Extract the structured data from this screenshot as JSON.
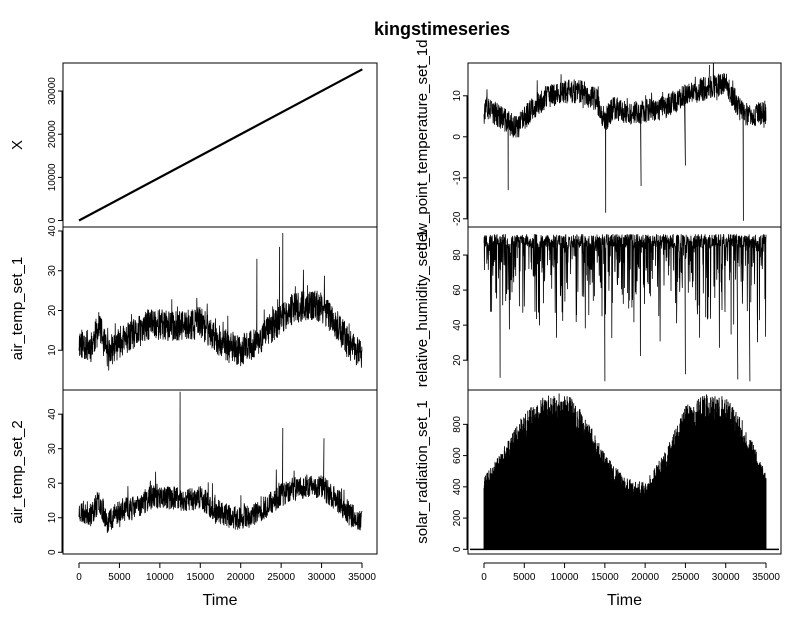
{
  "title": "kingstimeseries",
  "chart_data": {
    "type": "line",
    "title": "kingstimeseries",
    "xlabel": "Time",
    "xlim": [
      0,
      35000
    ],
    "xticks": [
      0,
      5000,
      10000,
      15000,
      20000,
      25000,
      30000,
      35000
    ],
    "grid": false,
    "legend": "none",
    "panels": [
      {
        "column": "left",
        "ylabel": "X",
        "ylim": [
          -1500,
          36500
        ],
        "yticks": [
          0,
          10000,
          20000,
          30000
        ],
        "kind": "linear",
        "x": [
          0,
          35040
        ],
        "values": [
          1,
          35040
        ]
      },
      {
        "column": "left",
        "ylabel": "air_temp_set_1",
        "ylim": [
          0,
          41
        ],
        "yticks": [
          10,
          20,
          30,
          40
        ],
        "kind": "noisy",
        "seed": 11,
        "noise": 4,
        "spikes": [
          [
            25200,
            39.5
          ],
          [
            24800,
            36
          ],
          [
            22000,
            33
          ]
        ],
        "x": [
          0,
          1500,
          2500,
          3500,
          5000,
          7000,
          9000,
          11000,
          13000,
          15000,
          17000,
          19000,
          20000,
          22000,
          24000,
          26000,
          28000,
          30000,
          32000,
          33500,
          35000
        ],
        "values": [
          12,
          11,
          16,
          9,
          12,
          14,
          17,
          16,
          16,
          17,
          13,
          10,
          10,
          12,
          16,
          20,
          21,
          21,
          16,
          11,
          9
        ]
      },
      {
        "column": "left",
        "ylabel": "air_temp_set_2",
        "ylim": [
          -0.5,
          47
        ],
        "yticks": [
          0,
          10,
          20,
          30,
          40
        ],
        "kind": "noisy",
        "seed": 23,
        "noise": 3.5,
        "spikes": [
          [
            12500,
            46.5
          ],
          [
            25200,
            36
          ],
          [
            30300,
            33
          ]
        ],
        "x": [
          0,
          1500,
          2500,
          3500,
          5000,
          7000,
          9000,
          11000,
          13000,
          15000,
          17000,
          19000,
          20000,
          22000,
          24000,
          26000,
          28000,
          30000,
          32000,
          33500,
          35000
        ],
        "values": [
          12,
          11,
          15,
          9,
          12,
          13,
          16,
          16,
          15,
          16,
          12,
          10,
          10,
          11,
          15,
          18,
          19,
          19,
          15,
          11,
          9
        ]
      },
      {
        "column": "right",
        "ylabel": "dew_point_temperature_set_1d",
        "ylim": [
          -22,
          18
        ],
        "yticks": [
          -20,
          -10,
          0,
          10
        ],
        "kind": "noisy",
        "seed": 37,
        "noise": 3,
        "spikes": [
          [
            15100,
            -18.5
          ],
          [
            32200,
            -20.5
          ],
          [
            3000,
            -13
          ],
          [
            19500,
            -12
          ],
          [
            25000,
            -7
          ],
          [
            28000,
            17.5
          ]
        ],
        "x": [
          0,
          2000,
          4000,
          6000,
          8000,
          10000,
          12000,
          14000,
          15000,
          16000,
          18000,
          20000,
          22000,
          24000,
          26000,
          28000,
          30000,
          32000,
          33000,
          35000
        ],
        "values": [
          7,
          5,
          2,
          7,
          10,
          11,
          11,
          9,
          4,
          7,
          6,
          6,
          7,
          9,
          11,
          12,
          13,
          6,
          5,
          6
        ]
      },
      {
        "column": "right",
        "ylabel": "relative_humidity_set_1",
        "ylim": [
          3,
          96
        ],
        "yticks": [
          20,
          40,
          60,
          80
        ],
        "kind": "humid",
        "seed": 53,
        "top": 92,
        "lows": [
          [
            2000,
            10
          ],
          [
            15000,
            8
          ],
          [
            25000,
            12
          ],
          [
            31500,
            9
          ],
          [
            33000,
            8
          ]
        ]
      },
      {
        "column": "right",
        "ylabel": "solar_radiation_set_1",
        "ylim": [
          -30,
          1020
        ],
        "yticks": [
          0,
          200,
          400,
          600,
          800
        ],
        "kind": "solar",
        "seed": 71,
        "x": [
          0,
          2500,
          5000,
          7500,
          9000,
          11000,
          13000,
          15000,
          17500,
          20000,
          22500,
          25000,
          27500,
          30000,
          32500,
          35000
        ],
        "values": [
          450,
          650,
          860,
          960,
          985,
          950,
          800,
          600,
          450,
          420,
          620,
          900,
          975,
          960,
          780,
          470
        ]
      }
    ]
  }
}
